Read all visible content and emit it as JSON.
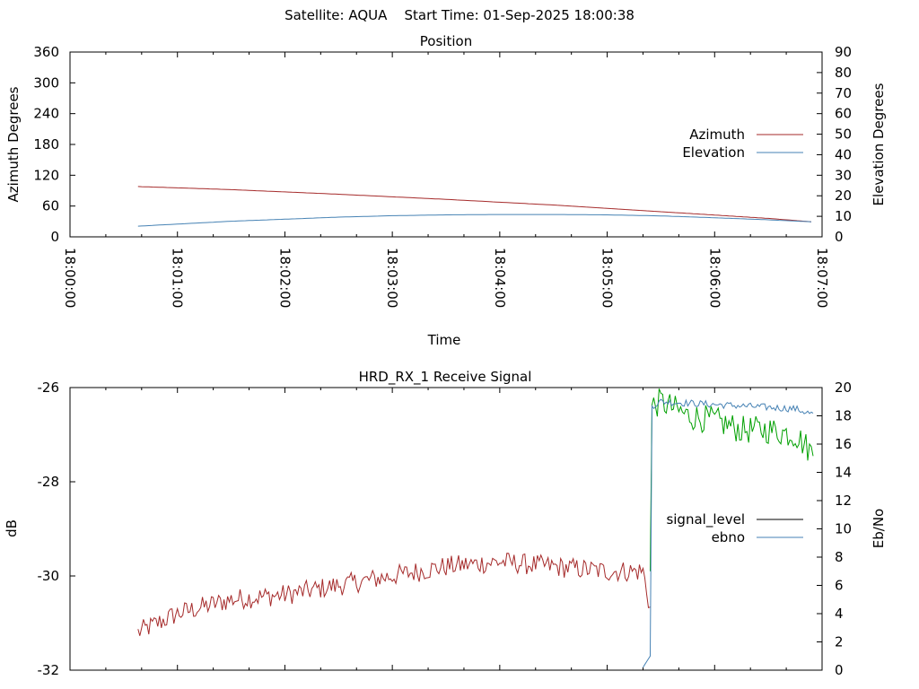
{
  "header": {
    "title": "Satellite: AQUA    Start Time: 01-Sep-2025 18:00:38"
  },
  "colors": {
    "azimuth": "#a52a2a",
    "elevation": "#4682b4",
    "signal_level": "#a52a2a",
    "ebno": "#4682b4",
    "signal_level_locked": "#00a000",
    "legend_signal_level": "#000000"
  },
  "chart_data": [
    {
      "type": "line",
      "title": "Position",
      "xlabel": "Time",
      "ylabel": "Azimuth Degrees",
      "y2label": "Elevation Degrees",
      "xlim": [
        "18:00:00",
        "18:07:00"
      ],
      "ylim": [
        0,
        360
      ],
      "y2lim": [
        0,
        90
      ],
      "x_ticks": [
        "18:00:00",
        "18:01:00",
        "18:02:00",
        "18:03:00",
        "18:04:00",
        "18:05:00",
        "18:06:00",
        "18:07:00"
      ],
      "y_ticks": [
        "0",
        "60",
        "120",
        "180",
        "240",
        "300",
        "360"
      ],
      "y2_ticks": [
        "0",
        "10",
        "20",
        "30",
        "40",
        "50",
        "60",
        "70",
        "80",
        "90"
      ],
      "legend": "right",
      "grid": false,
      "series": [
        {
          "name": "Azimuth",
          "axis": "y",
          "x": [
            "18:00:38",
            "18:01:30",
            "18:02:30",
            "18:03:30",
            "18:04:30",
            "18:05:30",
            "18:06:30",
            "18:06:55"
          ],
          "values": [
            98,
            92,
            83,
            73,
            62,
            49,
            36,
            29
          ]
        },
        {
          "name": "Elevation",
          "axis": "y2",
          "x": [
            "18:00:38",
            "18:01:30",
            "18:02:30",
            "18:03:00",
            "18:03:30",
            "18:04:00",
            "18:04:30",
            "18:05:00",
            "18:05:30",
            "18:06:00",
            "18:06:30",
            "18:06:55"
          ],
          "values": [
            5.2,
            7.6,
            9.6,
            10.3,
            10.7,
            10.9,
            10.9,
            10.7,
            10.2,
            9.3,
            8.3,
            7.3
          ]
        }
      ]
    },
    {
      "type": "line",
      "title": "HRD_RX_1 Receive Signal",
      "ylabel": "dB",
      "y2label": "Eb/No",
      "xlim": [
        "18:00:00",
        "18:07:00"
      ],
      "ylim": [
        -32,
        -26
      ],
      "y2lim": [
        0,
        20
      ],
      "y_ticks": [
        "-32",
        "-30",
        "-28",
        "-26"
      ],
      "y2_ticks": [
        "0",
        "2",
        "4",
        "6",
        "8",
        "10",
        "12",
        "14",
        "16",
        "18",
        "20"
      ],
      "legend": "right",
      "grid": false,
      "series": [
        {
          "name": "signal_level",
          "axis": "y",
          "x": [
            "18:00:38",
            "18:01:00",
            "18:01:30",
            "18:02:00",
            "18:02:30",
            "18:03:00",
            "18:03:30",
            "18:04:00",
            "18:04:30",
            "18:05:00",
            "18:05:20",
            "18:05:24",
            "18:05:25",
            "18:05:30",
            "18:05:45",
            "18:06:00",
            "18:06:15",
            "18:06:30",
            "18:06:45",
            "18:06:55"
          ],
          "values": [
            -31.2,
            -30.8,
            -30.5,
            -30.4,
            -30.2,
            -30.0,
            -29.8,
            -29.7,
            -29.8,
            -29.9,
            -29.9,
            -30.7,
            -26.4,
            -26.3,
            -26.6,
            -26.7,
            -26.9,
            -26.9,
            -27.0,
            -27.4
          ]
        },
        {
          "name": "ebno",
          "axis": "y2",
          "x": [
            "18:05:20",
            "18:05:24",
            "18:05:25",
            "18:05:30",
            "18:05:45",
            "18:06:00",
            "18:06:15",
            "18:06:30",
            "18:06:45",
            "18:06:55"
          ],
          "values": [
            0.2,
            1.0,
            18.7,
            19.0,
            18.9,
            18.8,
            18.7,
            18.6,
            18.5,
            18.1
          ]
        }
      ]
    }
  ]
}
